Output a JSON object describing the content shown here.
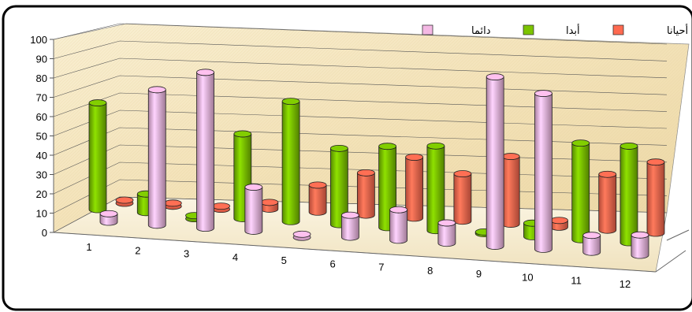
{
  "chart_data": {
    "type": "bar",
    "categories": [
      "1",
      "2",
      "3",
      "4",
      "5",
      "6",
      "7",
      "8",
      "9",
      "10",
      "11",
      "12"
    ],
    "series": [
      {
        "name": "أبدا",
        "color": "#7cc400",
        "values": [
          63,
          11,
          0,
          50,
          71,
          45,
          48,
          50,
          1,
          8,
          57,
          57
        ]
      },
      {
        "name": "دائما",
        "color": "#f4b8e4",
        "values": [
          5,
          80,
          92,
          26,
          0,
          13,
          18,
          12,
          100,
          92,
          10,
          12
        ]
      },
      {
        "name": "أحيانا",
        "color": "#ff6a50",
        "values": [
          0,
          0,
          0,
          4,
          16,
          25,
          36,
          28,
          40,
          4,
          33,
          42
        ]
      }
    ],
    "legend_order": [
      "دائما",
      "أبدا",
      "أحيانا"
    ],
    "y_ticks": [
      "0",
      "10",
      "20",
      "30",
      "40",
      "50",
      "60",
      "70",
      "80",
      "90",
      "100"
    ],
    "ylim": [
      0,
      100
    ],
    "grid": true,
    "legend_position": "top-right",
    "title": "",
    "xlabel": "",
    "ylabel": ""
  }
}
